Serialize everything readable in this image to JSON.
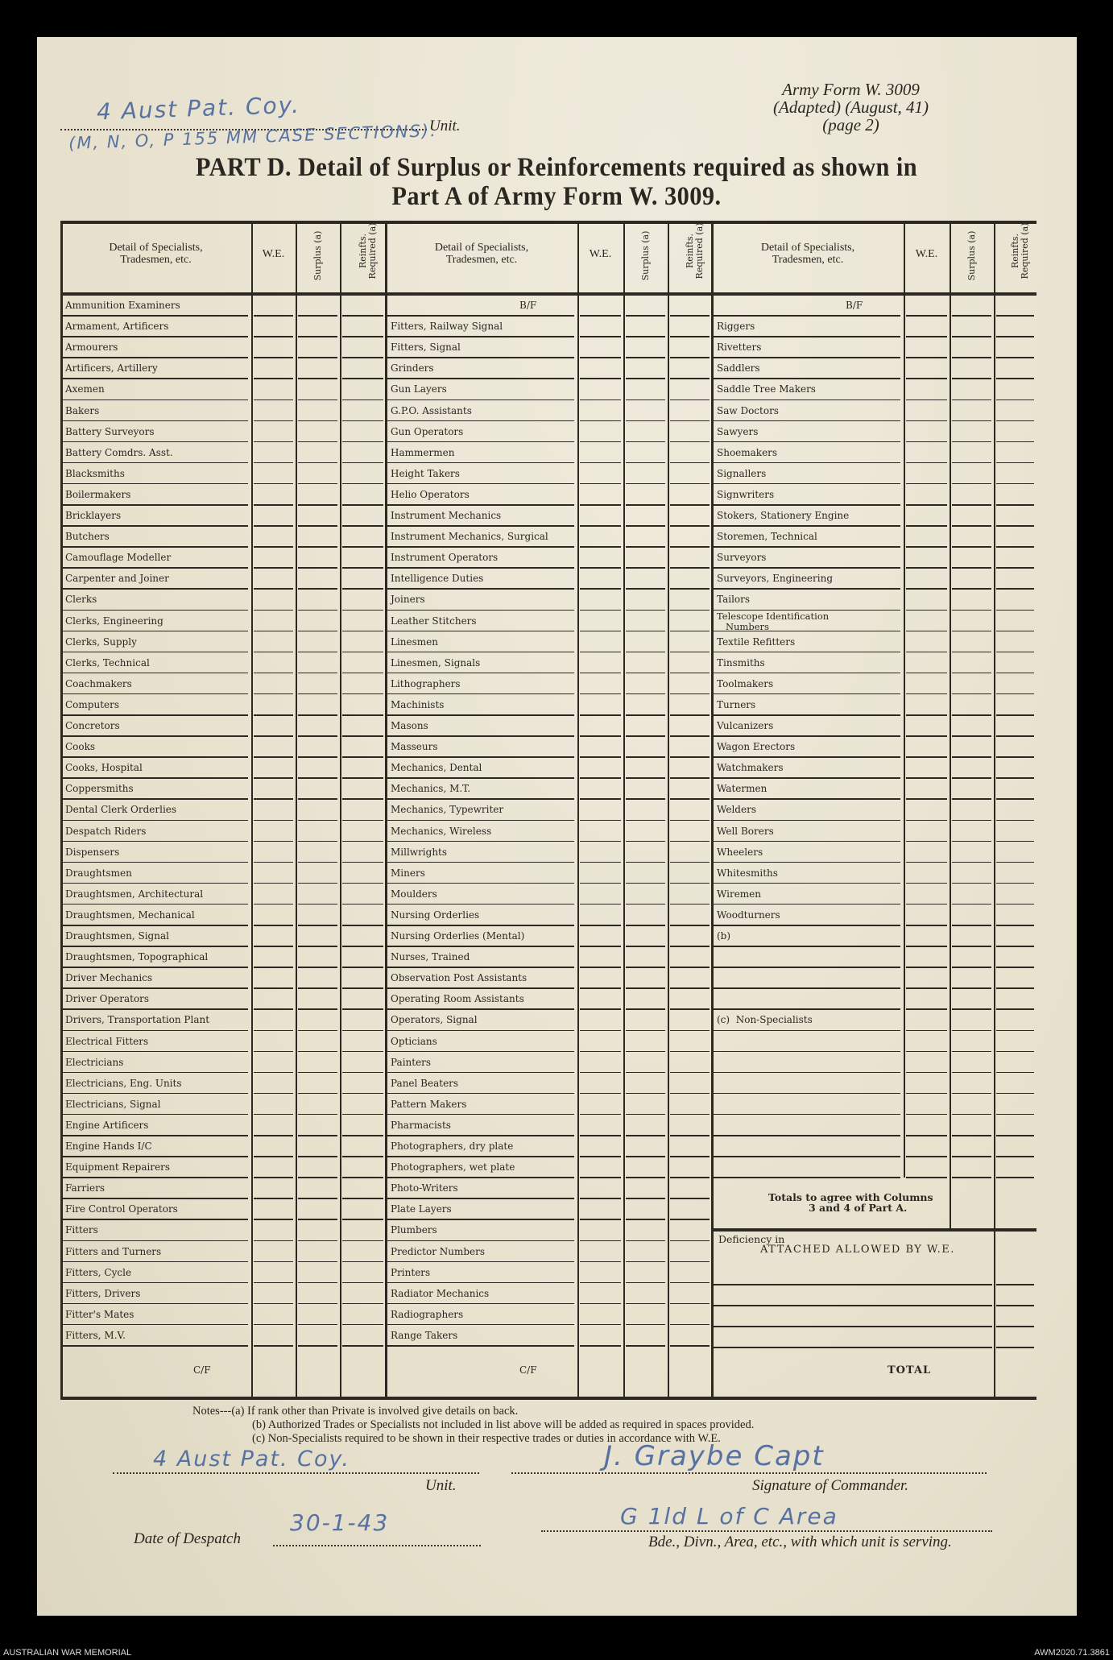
{
  "form_ref": {
    "line1": "Army Form W. 3009",
    "line2": "(Adapted) (August, 41)",
    "line3": "(page 2)"
  },
  "unit_top": {
    "label": "Unit.",
    "handwritten_line1": "4 Aust Pat. Coy.",
    "handwritten_line2": "(M, N, O, P 155 MM CASE SECTIONS)."
  },
  "title": {
    "line1": "PART D.  Detail of Surplus or Reinforcements required as shown in",
    "line2": "Part A of Army Form W. 3009."
  },
  "headers": {
    "detail": "Detail of Specialists,",
    "detail2": "Tradesmen, etc.",
    "we": "W.E.",
    "surplus": "Surplus",
    "surplus_note": "(a)",
    "reinf": "Reinfts.",
    "reinf2": "Required",
    "reinf_note": "(a)"
  },
  "columns": [
    {
      "rows": [
        "Ammunition Examiners",
        "Armament, Artificers",
        "Armourers",
        "Artificers, Artillery",
        "Axemen",
        "Bakers",
        "Battery Surveyors",
        "Battery Comdrs. Asst.",
        "Blacksmiths",
        "Boilermakers",
        "Bricklayers",
        "Butchers",
        "Camouflage Modeller",
        "Carpenter and Joiner",
        "Clerks",
        "Clerks, Engineering",
        "Clerks, Supply",
        "Clerks, Technical",
        "Coachmakers",
        "Computers",
        "Concretors",
        "Cooks",
        "Cooks, Hospital",
        "Coppersmiths",
        "Dental Clerk Orderlies",
        "Despatch Riders",
        "Dispensers",
        "Draughtsmen",
        "Draughtsmen, Architectural",
        "Draughtsmen, Mechanical",
        "Draughtsmen, Signal",
        "Draughtsmen, Topographical",
        "Driver Mechanics",
        "Driver Operators",
        "Drivers, Transportation Plant",
        "Electrical Fitters",
        "Electricians",
        "Electricians, Eng. Units",
        "Electricians, Signal",
        "Engine Artificers",
        "Engine Hands I/C",
        "Equipment Repairers",
        "Farriers",
        "Fire Control Operators",
        "Fitters",
        "Fitters and Turners",
        "Fitters, Cycle",
        "Fitters, Drivers",
        "Fitter's Mates",
        "Fitters, M.V."
      ],
      "footer": "C/F"
    },
    {
      "rows": [
        "B/F",
        "Fitters, Railway Signal",
        "Fitters, Signal",
        "Grinders",
        "Gun Layers",
        "G.P.O. Assistants",
        "Gun Operators",
        "Hammermen",
        "Height Takers",
        "Helio Operators",
        "Instrument Mechanics",
        "Instrument Mechanics, Surgical",
        "Instrument Operators",
        "Intelligence Duties",
        "Joiners",
        "Leather Stitchers",
        "Linesmen",
        "Linesmen, Signals",
        "Lithographers",
        "Machinists",
        "Masons",
        "Masseurs",
        "Mechanics, Dental",
        "Mechanics, M.T.",
        "Mechanics, Typewriter",
        "Mechanics, Wireless",
        "Millwrights",
        "Miners",
        "Moulders",
        "Nursing Orderlies",
        "Nursing Orderlies (Mental)",
        "Nurses, Trained",
        "Observation Post Assistants",
        "Operating Room Assistants",
        "Operators, Signal",
        "Opticians",
        "Painters",
        "Panel Beaters",
        "Pattern Makers",
        "Pharmacists",
        "Photographers, dry plate",
        "Photographers, wet plate",
        "Photo-Writers",
        "Plate Layers",
        "Plumbers",
        "Predictor Numbers",
        "Printers",
        "Radiator Mechanics",
        "Radiographers",
        "Range Takers"
      ],
      "footer": "C/F"
    },
    {
      "rows": [
        "B/F",
        "Riggers",
        "Rivetters",
        "Saddlers",
        "Saddle Tree Makers",
        "Saw Doctors",
        "Sawyers",
        "Shoemakers",
        "Signallers",
        "Signwriters",
        "Stokers, Stationery Engine",
        "Storemen, Technical",
        "Surveyors",
        "Surveyors, Engineering",
        "Tailors",
        "Telescope Identification\n   Numbers",
        "Textile Refitters",
        "Tinsmiths",
        "Toolmakers",
        "Turners",
        "Vulcanizers",
        "Wagon Erectors",
        "Watchmakers",
        "Watermen",
        "Welders",
        "Well Borers",
        "Wheelers",
        "Whitesmiths",
        "Wiremen",
        "Woodturners",
        "(b)",
        "",
        "",
        "",
        "(c)  Non-Specialists",
        "",
        "",
        "",
        "",
        "",
        "",
        ""
      ],
      "totals_note": "Totals to agree with Columns",
      "totals_note2": "3 and 4 of Part A.",
      "deficiency_label": "Deficiency in",
      "deficiency_label2": "ATTACHED ALLOWED BY W.E.",
      "footer": "TOTAL"
    }
  ],
  "notes": {
    "a": "Notes---(a)  If rank other than Private is involved give details on back.",
    "b": "(b)  Authorized Trades or Specialists not included in list above will be added as required in spaces provided.",
    "c": "(c)  Non-Specialists required to be shown in their respective trades or duties in accordance with W.E."
  },
  "bottom": {
    "unit_label": "Unit.",
    "unit_value": "4 Aust Pat. Coy.",
    "signature_label": "Signature of Commander.",
    "signature_value": "J. Graybe  Capt",
    "date_label": "Date of Despatch",
    "date_value": "30-1-43",
    "bde_label": "Bde., Divn., Area, etc., with which unit is serving.",
    "bde_value": "G 1ld  L of C Area"
  },
  "footer": {
    "left": "AUSTRALIAN WAR MEMORIAL",
    "right": "AWM2020.71.3861"
  },
  "colors": {
    "paper": "#e9e4d3",
    "ink": "#2b2620",
    "handwriting": "#3f5f9a"
  }
}
